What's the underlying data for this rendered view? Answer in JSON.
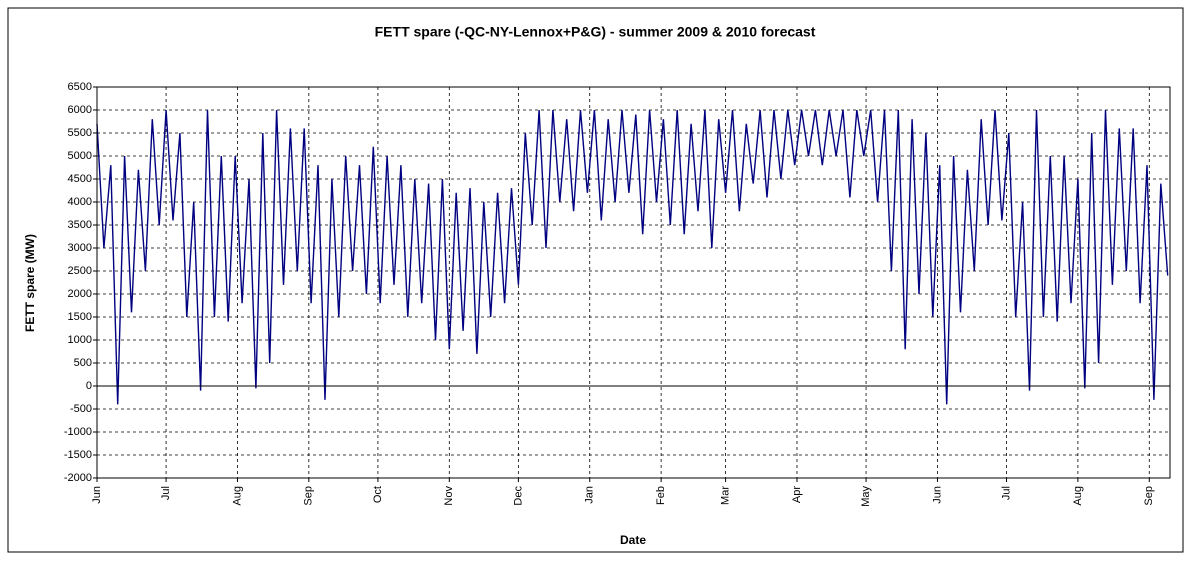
{
  "chart_data": {
    "type": "line",
    "title": "FETT spare (-QC-NY-Lennox+P&G) - summer 2009 & 2010 forecast",
    "xlabel": "Date",
    "ylabel": "FETT spare (MW)",
    "color": "#000080",
    "grid": true,
    "xlim": [
      0,
      466
    ],
    "xticks": [
      {
        "value": 0,
        "label": "Jun"
      },
      {
        "value": 30,
        "label": "Jul"
      },
      {
        "value": 61,
        "label": "Aug"
      },
      {
        "value": 92,
        "label": "Sep"
      },
      {
        "value": 122,
        "label": "Oct"
      },
      {
        "value": 153,
        "label": "Nov"
      },
      {
        "value": 183,
        "label": "Dec"
      },
      {
        "value": 214,
        "label": "Jan"
      },
      {
        "value": 245,
        "label": "Feb"
      },
      {
        "value": 273,
        "label": "Mar"
      },
      {
        "value": 304,
        "label": "Apr"
      },
      {
        "value": 334,
        "label": "May"
      },
      {
        "value": 365,
        "label": "Jun"
      },
      {
        "value": 395,
        "label": "Jul"
      },
      {
        "value": 426,
        "label": "Aug"
      },
      {
        "value": 457,
        "label": "Sep"
      }
    ],
    "ylim": [
      -2000,
      6500
    ],
    "yticks": [
      -2000,
      -1500,
      -1000,
      -500,
      0,
      500,
      1000,
      1500,
      2000,
      2500,
      3000,
      3500,
      4000,
      4500,
      5000,
      5500,
      6000,
      6500
    ],
    "x": [
      0,
      3,
      6,
      9,
      12,
      15,
      18,
      21,
      24,
      27,
      30,
      33,
      36,
      39,
      42,
      45,
      48,
      51,
      54,
      57,
      60,
      63,
      66,
      69,
      72,
      75,
      78,
      81,
      84,
      87,
      90,
      93,
      96,
      99,
      102,
      105,
      108,
      111,
      114,
      117,
      120,
      123,
      126,
      129,
      132,
      135,
      138,
      141,
      144,
      147,
      150,
      153,
      156,
      159,
      162,
      165,
      168,
      171,
      174,
      177,
      180,
      183,
      186,
      189,
      192,
      195,
      198,
      201,
      204,
      207,
      210,
      213,
      216,
      219,
      222,
      225,
      228,
      231,
      234,
      237,
      240,
      243,
      246,
      249,
      252,
      255,
      258,
      261,
      264,
      267,
      270,
      273,
      276,
      279,
      282,
      285,
      288,
      291,
      294,
      297,
      300,
      303,
      306,
      309,
      312,
      315,
      318,
      321,
      324,
      327,
      330,
      333,
      336,
      339,
      342,
      345,
      348,
      351,
      354,
      357,
      360,
      363,
      366,
      369,
      372,
      375,
      378,
      381,
      384,
      387,
      390,
      393,
      396,
      399,
      402,
      405,
      408,
      411,
      414,
      417,
      420,
      423,
      426,
      429,
      432,
      435,
      438,
      441,
      444,
      447,
      450,
      453,
      456,
      459,
      462,
      465
    ],
    "values": [
      5700,
      3000,
      4800,
      -400,
      5000,
      1600,
      4700,
      2500,
      5800,
      3500,
      6000,
      3600,
      5500,
      1500,
      4000,
      -100,
      6000,
      1500,
      5000,
      1400,
      5000,
      1800,
      4500,
      -50,
      5500,
      500,
      6000,
      2200,
      5600,
      2500,
      5600,
      1800,
      4800,
      -300,
      4500,
      1500,
      5000,
      2500,
      4800,
      2000,
      5200,
      1800,
      5000,
      2200,
      4800,
      1500,
      4500,
      1800,
      4400,
      1000,
      4500,
      800,
      4200,
      1200,
      4300,
      700,
      4000,
      1500,
      4200,
      1800,
      4300,
      2200,
      5500,
      3500,
      6000,
      3000,
      6000,
      4000,
      5800,
      3800,
      6000,
      4200,
      6000,
      3600,
      5800,
      4000,
      6000,
      4200,
      5900,
      3300,
      6000,
      4000,
      5800,
      3500,
      6000,
      3300,
      5700,
      3800,
      6000,
      3000,
      5800,
      4200,
      6000,
      3800,
      5700,
      4400,
      6000,
      4100,
      6000,
      4500,
      6000,
      4800,
      6000,
      5000,
      6000,
      4800,
      6000,
      5000,
      6000,
      4100,
      6000,
      5000,
      6000,
      4000,
      6000,
      2500,
      6000,
      800,
      5800,
      2000,
      5500,
      1500,
      4800,
      -400,
      5000,
      1600,
      4700,
      2500,
      5800,
      3500,
      6000,
      3600,
      5500,
      1500,
      4000,
      -100,
      6000,
      1500,
      5000,
      1400,
      5000,
      1800,
      4500,
      -50,
      5500,
      500,
      6000,
      2200,
      5600,
      2500,
      5600,
      1800,
      4800,
      -300,
      4400,
      2400
    ]
  }
}
